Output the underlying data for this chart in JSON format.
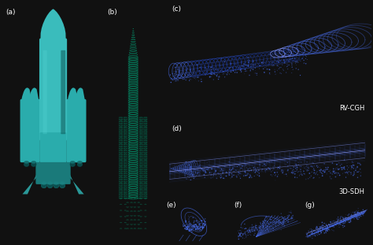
{
  "figure_bg": "#111111",
  "panels": {
    "a": [
      0.005,
      0.005,
      0.275,
      0.99
    ],
    "b": [
      0.282,
      0.005,
      0.15,
      0.99
    ],
    "c": [
      0.438,
      0.51,
      0.557,
      0.482
    ],
    "d": [
      0.438,
      0.188,
      0.557,
      0.31
    ],
    "e": [
      0.438,
      0.005,
      0.178,
      0.178
    ],
    "f": [
      0.62,
      0.005,
      0.185,
      0.178
    ],
    "g": [
      0.809,
      0.005,
      0.186,
      0.178
    ]
  },
  "labels": {
    "a": "(a)",
    "b": "(b)",
    "c": "(c)",
    "d": "(d)",
    "e": "(e)",
    "f": "(f)",
    "g": "(g)"
  },
  "label_color": "white",
  "label_fontsize": 6.5,
  "text_rvcgh": "RV-CGH",
  "text_3dsdh": "3D-SDH",
  "text_fontsize": 6.0,
  "rocket_bg": "#000000",
  "rocket_teal": "#3abcbc",
  "rocket_teal_dark": "#1a7a7a",
  "rocket_teal_mid": "#2aacac",
  "panel_bg_a": "#000000",
  "wireframe_color": "#00bb88",
  "holo_bg": "#000510",
  "holo_blue": "#1a3aaa",
  "holo_bright": "#4466dd",
  "holo_white": "#8899ff"
}
